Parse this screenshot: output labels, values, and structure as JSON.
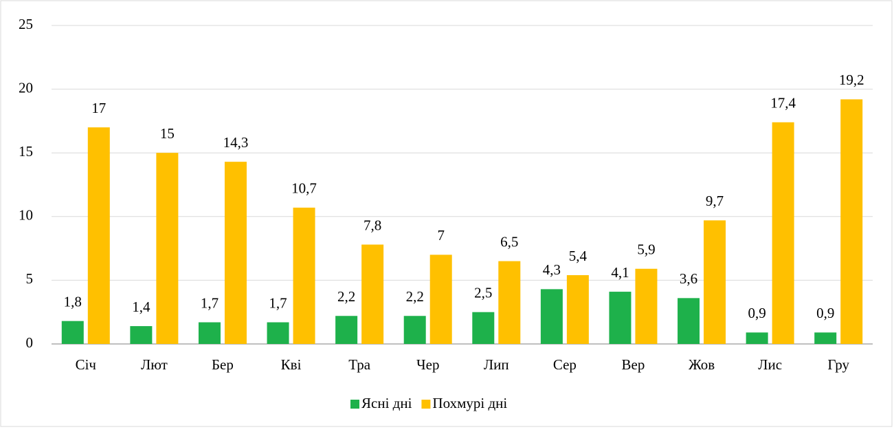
{
  "chart_data": {
    "type": "bar",
    "categories": [
      "Січ",
      "Лют",
      "Бер",
      "Кві",
      "Тра",
      "Чер",
      "Лип",
      "Сер",
      "Вер",
      "Жов",
      "Лис",
      "Гру"
    ],
    "series": [
      {
        "name": "Ясні дні",
        "color": "#1eb14b",
        "values": [
          1.8,
          1.4,
          1.7,
          1.7,
          2.2,
          2.2,
          2.5,
          4.3,
          4.1,
          3.6,
          0.9,
          0.9
        ],
        "value_labels": [
          "1,8",
          "1,4",
          "1,7",
          "1,7",
          "2,2",
          "2,2",
          "2,5",
          "4,3",
          "4,1",
          "3,6",
          "0,9",
          "0,9"
        ]
      },
      {
        "name": "Похмурі дні",
        "color": "#ffc000",
        "values": [
          17,
          15,
          14.3,
          10.7,
          7.8,
          7,
          6.5,
          5.4,
          5.9,
          9.7,
          17.4,
          19.2
        ],
        "value_labels": [
          "17",
          "15",
          "14,3",
          "10,7",
          "7,8",
          "7",
          "6,5",
          "5,4",
          "5,9",
          "9,7",
          "17,4",
          "19,2"
        ]
      }
    ],
    "ylim": [
      0,
      25
    ],
    "yticks": [
      0,
      5,
      10,
      15,
      20,
      25
    ],
    "grid": true,
    "legend": "bottom"
  }
}
